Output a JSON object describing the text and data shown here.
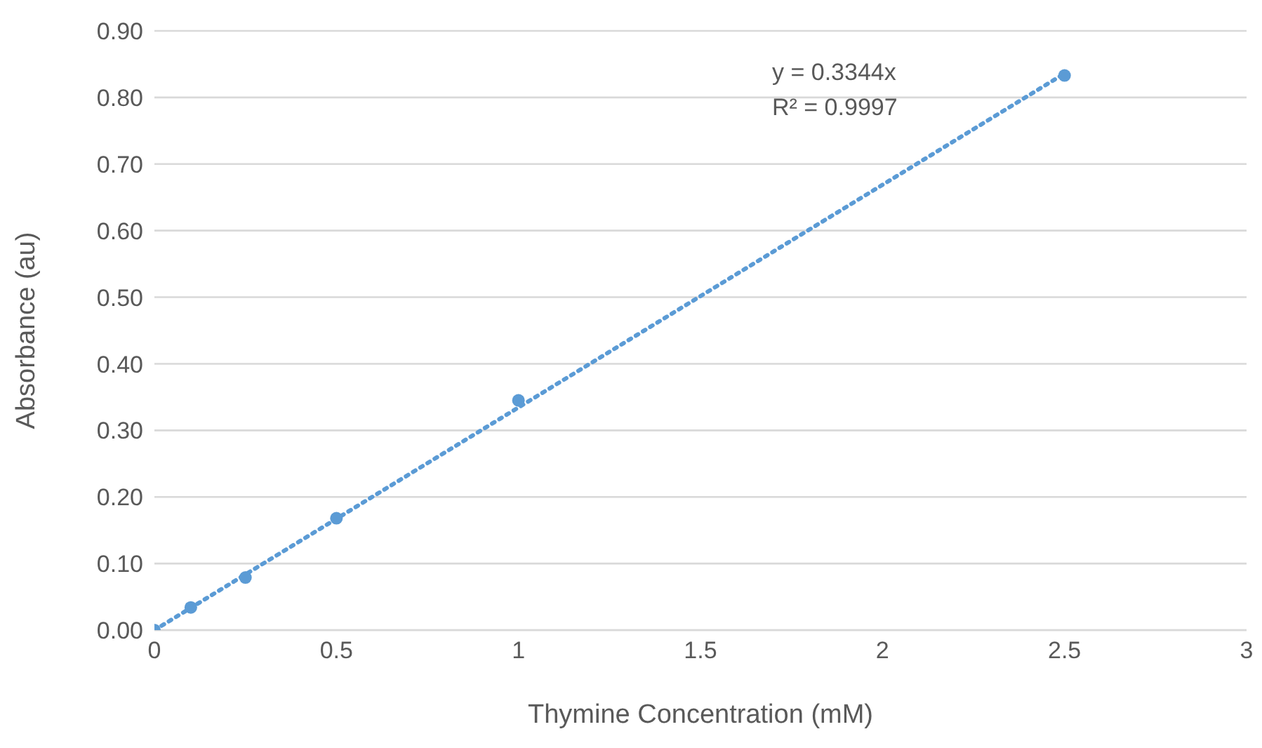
{
  "chart_data": {
    "type": "scatter",
    "xlabel": "Thymine Concentration (mM)",
    "ylabel": "Absorbance (au)",
    "xlim": [
      0,
      3
    ],
    "xticks": [
      0,
      0.5,
      1,
      1.5,
      2,
      2.5,
      3
    ],
    "ylim": [
      0,
      0.9
    ],
    "yticks": [
      {
        "value": 0,
        "label": "0.00"
      },
      {
        "value": 0.1,
        "label": "0.10"
      },
      {
        "value": 0.2,
        "label": "0.20"
      },
      {
        "value": 0.3,
        "label": "0.30"
      },
      {
        "value": 0.4,
        "label": "0.40"
      },
      {
        "value": 0.5,
        "label": "0.50"
      },
      {
        "value": 0.6,
        "label": "0.60"
      },
      {
        "value": 0.7,
        "label": "0.70"
      },
      {
        "value": 0.8,
        "label": "0.80"
      },
      {
        "value": 0.9,
        "label": "0.90"
      }
    ],
    "grid": "y",
    "series": [
      {
        "color": "#5b9bd5",
        "marker": "circle",
        "x": [
          0,
          0.1,
          0.25,
          0.5,
          1,
          2.5
        ],
        "values": [
          0,
          0.034,
          0.079,
          0.168,
          0.345,
          0.833
        ]
      },
      {
        "type": "line",
        "color": "#5b9bd5",
        "marker": "none",
        "line_style": "dotted",
        "x": [
          0,
          2.5
        ],
        "values": [
          0,
          0.836
        ]
      }
    ],
    "annotations": [
      "y = 0.3344x",
      "R² = 0.9997"
    ]
  }
}
